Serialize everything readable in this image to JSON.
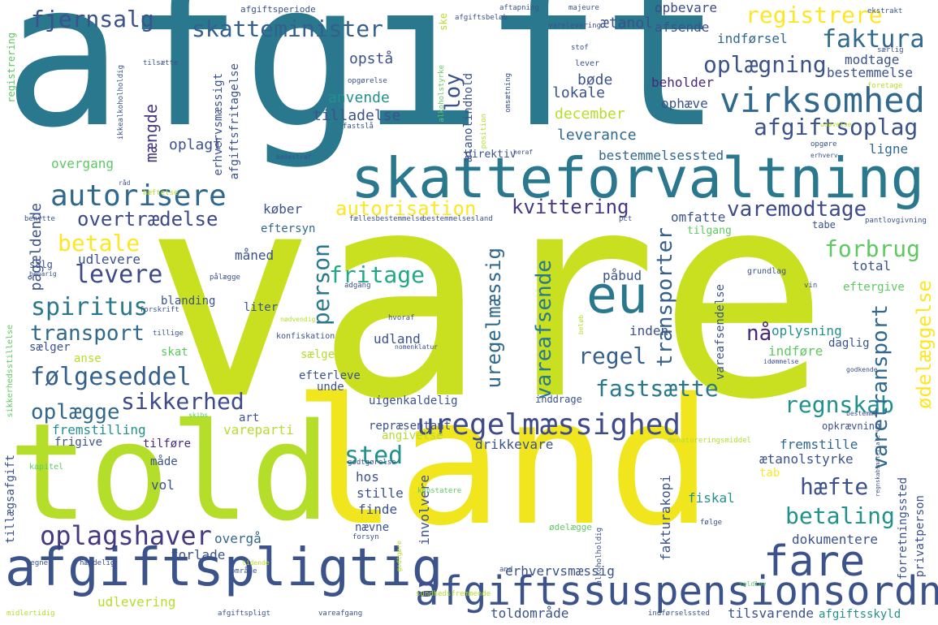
{
  "cloud": {
    "words": [
      {
        "id": "afgift",
        "text": "afgift",
        "color": "#2a788e"
      },
      {
        "id": "vare",
        "text": "vare",
        "color": "#c8e020"
      },
      {
        "id": "land",
        "text": "land",
        "color": "#f1e51d"
      },
      {
        "id": "told",
        "text": "told",
        "color": "#b5de2b"
      },
      {
        "id": "skatteforvaltning",
        "text": "skatteforvaltning",
        "color": "#2a788e"
      },
      {
        "id": "afgiftspligtig",
        "text": "afgiftspligtig",
        "color": "#3b528b"
      },
      {
        "id": "afgiftssuspensionsordning",
        "text": "afgiftssuspensionsordning",
        "color": "#3b528b"
      },
      {
        "id": "virksomhed",
        "text": "virksomhed",
        "color": "#31688e"
      },
      {
        "id": "eu",
        "text": "eu",
        "color": "#2a788e"
      },
      {
        "id": "fare",
        "text": "fare",
        "color": "#3b528b"
      },
      {
        "id": "autorisere",
        "text": "autorisere",
        "color": "#31688e"
      },
      {
        "id": "uregelmaessighed",
        "text": "uregelmæssighed",
        "color": "#3e4a89"
      },
      {
        "id": "oplagshaver",
        "text": "oplagshaver",
        "color": "#443983"
      },
      {
        "id": "skatteminister",
        "text": "skatteminister",
        "color": "#35608d"
      },
      {
        "id": "fjernsalg",
        "text": "fjernsalg",
        "color": "#3b528b"
      },
      {
        "id": "registrere",
        "text": "registrere",
        "color": "#fde725"
      },
      {
        "id": "faktura",
        "text": "faktura",
        "color": "#31688e"
      },
      {
        "id": "oplaegning",
        "text": "oplægning",
        "color": "#3b528b"
      },
      {
        "id": "afgiftsoplag",
        "text": "afgiftsoplag",
        "color": "#3b528b"
      },
      {
        "id": "kvittering",
        "text": "kvittering",
        "color": "#443983"
      },
      {
        "id": "varemodtage",
        "text": "varemodtage",
        "color": "#3e4a89"
      },
      {
        "id": "autorisation",
        "text": "autorisation",
        "color": "#fde725"
      },
      {
        "id": "overtraedelse",
        "text": "overtrædelse",
        "color": "#3e4a89"
      },
      {
        "id": "betale",
        "text": "betale",
        "color": "#fde725"
      },
      {
        "id": "levere",
        "text": "levere",
        "color": "#3e4a89"
      },
      {
        "id": "spiritus",
        "text": "spiritus",
        "color": "#2a788e"
      },
      {
        "id": "transport",
        "text": "transport",
        "color": "#31688e"
      },
      {
        "id": "foelgeseddel",
        "text": "følgeseddel",
        "color": "#35608d"
      },
      {
        "id": "sikkerhed",
        "text": "sikkerhed",
        "color": "#3e4a89"
      },
      {
        "id": "oplaegge",
        "text": "oplægge",
        "color": "#31688e"
      },
      {
        "id": "fritage",
        "text": "fritage",
        "color": "#22a884"
      },
      {
        "id": "person",
        "text": "person",
        "color": "#2a788e"
      },
      {
        "id": "regel",
        "text": "regel",
        "color": "#35608d"
      },
      {
        "id": "fastsaette",
        "text": "fastsætte",
        "color": "#2a788e"
      },
      {
        "id": "regnskab",
        "text": "regnskab",
        "color": "#21918c"
      },
      {
        "id": "forbrug",
        "text": "forbrug",
        "color": "#5ec962"
      },
      {
        "id": "betaling",
        "text": "betaling",
        "color": "#21918c"
      },
      {
        "id": "haefte",
        "text": "hæfte",
        "color": "#3b528b"
      },
      {
        "id": "sted",
        "text": "sted",
        "color": "#21918c"
      },
      {
        "id": "naa",
        "text": "nå",
        "color": "#482878"
      },
      {
        "id": "transporter",
        "text": "transporter",
        "color": "#35608d"
      },
      {
        "id": "vareafsende",
        "text": "vareafsende",
        "color": "#2a788e"
      },
      {
        "id": "uregelmaessig",
        "text": "uregelmæssig",
        "color": "#31688e"
      },
      {
        "id": "loy",
        "text": "loy",
        "color": "#3b528b"
      },
      {
        "id": "vaeretransport",
        "text": "varetransport",
        "color": "#31688e"
      },
      {
        "id": "oedelaeggelse",
        "text": "ødelæggelse",
        "color": "#fde725"
      },
      {
        "id": "paagaeldende",
        "text": "pågældende",
        "color": "#3b528b"
      },
      {
        "id": "maengde",
        "text": "mængde",
        "color": "#443983"
      },
      {
        "id": "oplagt",
        "text": "oplagt",
        "color": "#3b528b"
      },
      {
        "id": "tilladelse",
        "text": "tilladelse",
        "color": "#3b528b"
      },
      {
        "id": "leverance",
        "text": "leverance",
        "color": "#31688e"
      },
      {
        "id": "december",
        "text": "december",
        "color": "#b5de2b"
      },
      {
        "id": "lokale",
        "text": "lokale",
        "color": "#3b528b"
      },
      {
        "id": "boede",
        "text": "bøde",
        "color": "#3b528b"
      },
      {
        "id": "opstaa",
        "text": "opstå",
        "color": "#3b528b"
      },
      {
        "id": "anvende",
        "text": "anvende",
        "color": "#21918c"
      },
      {
        "id": "aetanol",
        "text": "ætanol",
        "color": "#3b528b"
      },
      {
        "id": "opbevare",
        "text": "opbevare",
        "color": "#3e4a89"
      },
      {
        "id": "afsende",
        "text": "afsende",
        "color": "#3b528b"
      },
      {
        "id": "indfoersel",
        "text": "indførsel",
        "color": "#31688e"
      },
      {
        "id": "modtage",
        "text": "modtage",
        "color": "#3b528b"
      },
      {
        "id": "bestemmelse",
        "text": "bestemmelse",
        "color": "#3b528b"
      },
      {
        "id": "beholder",
        "text": "beholder",
        "color": "#482878"
      },
      {
        "id": "ophaeve",
        "text": "ophæve",
        "color": "#3b528b"
      },
      {
        "id": "bestemmelsessted",
        "text": "bestemmelsessted",
        "color": "#31688e"
      },
      {
        "id": "ligne",
        "text": "ligne",
        "color": "#31688e"
      },
      {
        "id": "omfatte",
        "text": "omfatte",
        "color": "#3b528b"
      },
      {
        "id": "koeber",
        "text": "køber",
        "color": "#3b528b"
      },
      {
        "id": "eftersyn",
        "text": "eftersyn",
        "color": "#31688e"
      },
      {
        "id": "maaned",
        "text": "måned",
        "color": "#3b528b"
      },
      {
        "id": "udlevere",
        "text": "udlevere",
        "color": "#3b528b"
      },
      {
        "id": "blanding",
        "text": "blanding",
        "color": "#3b528b"
      },
      {
        "id": "liter",
        "text": "liter",
        "color": "#3b528b"
      },
      {
        "id": "paabud",
        "text": "påbud",
        "color": "#3b528b"
      },
      {
        "id": "total",
        "text": "total",
        "color": "#3b528b"
      },
      {
        "id": "eftergive",
        "text": "eftergive",
        "color": "#5ec962"
      },
      {
        "id": "inden",
        "text": "inden",
        "color": "#3b528b"
      },
      {
        "id": "oplysning",
        "text": "oplysning",
        "color": "#21918c"
      },
      {
        "id": "indfoere",
        "text": "indføre",
        "color": "#5ec962"
      },
      {
        "id": "daglig",
        "text": "daglig",
        "color": "#3b528b"
      },
      {
        "id": "vareafsendelse",
        "text": "vareafsendelse",
        "color": "#3b528b"
      },
      {
        "id": "udland",
        "text": "udland",
        "color": "#3b528b"
      },
      {
        "id": "uigenkaldelig",
        "text": "uigenkaldelig",
        "color": "#3b528b"
      },
      {
        "id": "unde",
        "text": "unde",
        "color": "#3b528b"
      },
      {
        "id": "efterleve",
        "text": "efterleve",
        "color": "#3b528b"
      },
      {
        "id": "saelge",
        "text": "sælge",
        "color": "#b5de2b"
      },
      {
        "id": "skat",
        "text": "skat",
        "color": "#5ec962"
      },
      {
        "id": "anse",
        "text": "anse",
        "color": "#b5de2b"
      },
      {
        "id": "saelger",
        "text": "sælger",
        "color": "#3b528b"
      },
      {
        "id": "overgang",
        "text": "overgang",
        "color": "#5ec962"
      },
      {
        "id": "fremstilling",
        "text": "fremstilling",
        "color": "#21918c"
      },
      {
        "id": "frigive",
        "text": "frigive",
        "color": "#3b528b"
      },
      {
        "id": "tilfoere",
        "text": "tilføre",
        "color": "#482878"
      },
      {
        "id": "maade",
        "text": "måde",
        "color": "#3b528b"
      },
      {
        "id": "vol",
        "text": "vol",
        "color": "#3b528b"
      },
      {
        "id": "vareparti",
        "text": "vareparti",
        "color": "#b5de2b"
      },
      {
        "id": "art",
        "text": "art",
        "color": "#3b528b"
      },
      {
        "id": "repraesentant",
        "text": "repræsentant",
        "color": "#3b528b"
      },
      {
        "id": "drikkevare",
        "text": "drikkevare",
        "color": "#3b528b"
      },
      {
        "id": "angivelse",
        "text": "angivelse",
        "color": "#b5de2b"
      },
      {
        "id": "hos",
        "text": "hos",
        "color": "#3b528b"
      },
      {
        "id": "stille",
        "text": "stille",
        "color": "#3b528b"
      },
      {
        "id": "finde",
        "text": "finde",
        "color": "#3b528b"
      },
      {
        "id": "naevne",
        "text": "nævne",
        "color": "#3b528b"
      },
      {
        "id": "involvere",
        "text": "involvere",
        "color": "#3b528b"
      },
      {
        "id": "fakturakopi",
        "text": "fakturakopi",
        "color": "#3b528b"
      },
      {
        "id": "fiskal",
        "text": "fiskal",
        "color": "#21918c"
      },
      {
        "id": "fremstille",
        "text": "fremstille",
        "color": "#31688e"
      },
      {
        "id": "aetanolstyrke",
        "text": "ætanolstyrke",
        "color": "#3b528b"
      },
      {
        "id": "tab",
        "text": "tab",
        "color": "#fde725"
      },
      {
        "id": "dokumentere",
        "text": "dokumentere",
        "color": "#3b528b"
      },
      {
        "id": "forretningssted",
        "text": "forretningssted",
        "color": "#3b528b"
      },
      {
        "id": "privatperson",
        "text": "privatperson",
        "color": "#3b528b"
      },
      {
        "id": "overgaa",
        "text": "overgå",
        "color": "#31688e"
      },
      {
        "id": "forlade",
        "text": "forlade",
        "color": "#3b528b"
      },
      {
        "id": "erhvervsmaessig",
        "text": "erhvervsmæssig",
        "color": "#3b528b"
      },
      {
        "id": "udlevering",
        "text": "udlevering",
        "color": "#b5de2b"
      },
      {
        "id": "toldomraade",
        "text": "toldområde",
        "color": "#3b528b"
      },
      {
        "id": "tilsvarende",
        "text": "tilsvarende",
        "color": "#3b528b"
      },
      {
        "id": "afgiftsskyld",
        "text": "afgiftsskyld",
        "color": "#21918c"
      },
      {
        "id": "afgiftsfritagelse",
        "text": "afgiftsfritagelse",
        "color": "#3b528b"
      },
      {
        "id": "erhvervsmaessigt",
        "text": "erhvervsmæssigt",
        "color": "#3b528b"
      },
      {
        "id": "aetanolindhold",
        "text": "ætanolindhold",
        "color": "#3b528b"
      },
      {
        "id": "registrering",
        "text": "registrering",
        "color": "#5ec962"
      },
      {
        "id": "tillaegsafgift",
        "text": "tillægsafgift",
        "color": "#3b528b"
      },
      {
        "id": "sikkerhedsstillelse",
        "text": "sikkerhedsstillelse",
        "color": "#5ec962"
      },
      {
        "id": "ske",
        "text": "ske",
        "color": "#b5de2b"
      },
      {
        "id": "afgiftsperiode",
        "text": "afgiftsperiode",
        "color": "#3b528b"
      },
      {
        "id": "afgiftsbeloeb",
        "text": "afgiftsbeløb",
        "color": "#3b528b"
      },
      {
        "id": "aftapning",
        "text": "aftapning",
        "color": "#3b528b"
      },
      {
        "id": "majeure",
        "text": "majeure",
        "color": "#3b528b"
      },
      {
        "id": "ekstrakt",
        "text": "ekstrakt",
        "color": "#3b528b"
      },
      {
        "id": "varelevering",
        "text": "varelevering",
        "color": "#3b528b"
      },
      {
        "id": "stof",
        "text": "stof",
        "color": "#3b528b"
      },
      {
        "id": "saerlig",
        "text": "særlig",
        "color": "#3b528b"
      },
      {
        "id": "lever",
        "text": "lever",
        "color": "#3b528b"
      },
      {
        "id": "foretage",
        "text": "foretage",
        "color": "#b5de2b"
      },
      {
        "id": "opgoerelse",
        "text": "opgørelse",
        "color": "#3b528b"
      },
      {
        "id": "tilsaette",
        "text": "tilsætte",
        "color": "#3b528b"
      },
      {
        "id": "ikkealkoholholdig",
        "text": "ikkealkoholholdig",
        "color": "#3b528b"
      },
      {
        "id": "alkoholstyrke",
        "text": "alkoholstyrke",
        "color": "#5ec962"
      },
      {
        "id": "omsaetning",
        "text": "omsætning",
        "color": "#3b528b"
      },
      {
        "id": "position",
        "text": "position",
        "color": "#b5de2b"
      },
      {
        "id": "fastslaa",
        "text": "fastslå",
        "color": "#3b528b"
      },
      {
        "id": "udoevelse",
        "text": "udøvelse",
        "color": "#b5de2b"
      },
      {
        "id": "opgoere",
        "text": "opgøre",
        "color": "#3b528b"
      },
      {
        "id": "erhverv",
        "text": "erhverv",
        "color": "#3b528b"
      },
      {
        "id": "direktiv",
        "text": "direktiv",
        "color": "#3b528b"
      },
      {
        "id": "heraf",
        "text": "heraf",
        "color": "#3b528b"
      },
      {
        "id": "boedestraf",
        "text": "bødestraf",
        "color": "#3b528b"
      },
      {
        "id": "raad",
        "text": "råd",
        "color": "#3b528b"
      },
      {
        "id": "haeftelse",
        "text": "hæftelse",
        "color": "#b5de2b"
      },
      {
        "id": "benytte",
        "text": "benytte",
        "color": "#3b528b"
      },
      {
        "id": "faellesbestemmelse",
        "text": "fællesbestemmelse",
        "color": "#3b528b"
      },
      {
        "id": "bestemmelsesland",
        "text": "bestemmelsesland",
        "color": "#3b528b"
      },
      {
        "id": "pct",
        "text": "pct",
        "color": "#3b528b"
      },
      {
        "id": "tabe",
        "text": "tabe",
        "color": "#3b528b"
      },
      {
        "id": "pantlovgivning",
        "text": "pantlovgivning",
        "color": "#3b528b"
      },
      {
        "id": "tilgang",
        "text": "tilgang",
        "color": "#5ec962"
      },
      {
        "id": "salg",
        "text": "salg",
        "color": "#3b528b"
      },
      {
        "id": "beharig",
        "text": "beharig",
        "color": "#3b528b"
      },
      {
        "id": "paalaegge",
        "text": "pålægge",
        "color": "#3b528b"
      },
      {
        "id": "adgang",
        "text": "adgang",
        "color": "#3b528b"
      },
      {
        "id": "grundlag",
        "text": "grundlag",
        "color": "#3b528b"
      },
      {
        "id": "vin",
        "text": "vin",
        "color": "#3b528b"
      },
      {
        "id": "forskrift",
        "text": "forskrift",
        "color": "#3b528b"
      },
      {
        "id": "hvoraf",
        "text": "hvoraf",
        "color": "#3b528b"
      },
      {
        "id": "noedvendig",
        "text": "nødvendig",
        "color": "#b5de2b"
      },
      {
        "id": "tillige",
        "text": "tillige",
        "color": "#3b528b"
      },
      {
        "id": "konfiskation",
        "text": "konfiskation",
        "color": "#3b528b"
      },
      {
        "id": "nomenklatur",
        "text": "nomenklatur",
        "color": "#3b528b"
      },
      {
        "id": "beloeb",
        "text": "beløb",
        "color": "#b5de2b"
      },
      {
        "id": "idemmelse",
        "text": "idømmelse",
        "color": "#3b528b"
      },
      {
        "id": "godkende",
        "text": "godkende",
        "color": "#3b528b"
      },
      {
        "id": "inddrage",
        "text": "inddrage",
        "color": "#3b528b"
      },
      {
        "id": "bestemme",
        "text": "bestemme",
        "color": "#3b528b"
      },
      {
        "id": "opkraevning",
        "text": "opkrævning",
        "color": "#3b528b"
      },
      {
        "id": "denatureringsmiddel",
        "text": "denatureringsmiddel",
        "color": "#b5de2b"
      },
      {
        "id": "kapitel",
        "text": "kapitel",
        "color": "#5ec962"
      },
      {
        "id": "godtgoerelse",
        "text": "godtgørelse",
        "color": "#3b528b"
      },
      {
        "id": "konstatere",
        "text": "konstatere",
        "color": "#5ec962"
      },
      {
        "id": "oedelaegge",
        "text": "ødelægge",
        "color": "#5ec962"
      },
      {
        "id": "alkoholholdig",
        "text": "alkoholholdig",
        "color": "#3b528b"
      },
      {
        "id": "foelge",
        "text": "følge",
        "color": "#3b528b"
      },
      {
        "id": "forsyn",
        "text": "forsyn",
        "color": "#3b528b"
      },
      {
        "id": "godtgoere",
        "text": "godtgøre",
        "color": "#b5de2b"
      },
      {
        "id": "and",
        "text": "and",
        "color": "#3b528b"
      },
      {
        "id": "sundhedsfremmende",
        "text": "sundhedsfremmende",
        "color": "#b5de2b"
      },
      {
        "id": "vegne",
        "text": "vegne",
        "color": "#3b528b"
      },
      {
        "id": "haendelig",
        "text": "hændelig",
        "color": "#3b528b"
      },
      {
        "id": "tidende",
        "text": "tidende",
        "color": "#b5de2b"
      },
      {
        "id": "omraade",
        "text": "område",
        "color": "#3b528b"
      },
      {
        "id": "midlertidig",
        "text": "midlertidig",
        "color": "#b5de2b"
      },
      {
        "id": "afgiftspligt",
        "text": "afgiftspligt",
        "color": "#3b528b"
      },
      {
        "id": "vareafgang",
        "text": "vareafgang",
        "color": "#3b528b"
      },
      {
        "id": "indfoerselssted",
        "text": "indførselssted",
        "color": "#3b528b"
      },
      {
        "id": "toldlov",
        "text": "toldlov",
        "color": "#5ec962"
      },
      {
        "id": "regnskabsmateriale",
        "text": "regnskabsmateriale",
        "color": "#3b528b"
      },
      {
        "id": "skibs",
        "text": "skibs",
        "color": "#5ec962"
      }
    ]
  }
}
